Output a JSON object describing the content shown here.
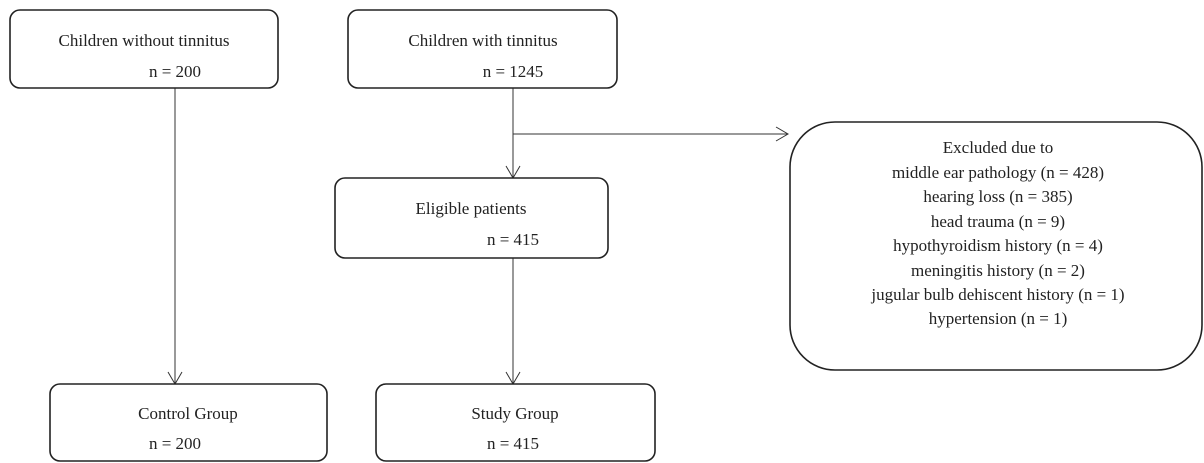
{
  "nodes": [
    {
      "lines": [
        "Children without tinnitus",
        "n = 200"
      ]
    },
    {
      "lines": [
        "Children with tinnitus",
        "n = 1245"
      ]
    },
    {
      "lines": [
        "Excluded due to",
        "middle ear pathology (n = 428)",
        "hearing loss (n = 385)",
        "head trauma (n = 9)",
        "hypothyroidism history (n = 4)",
        "meningitis history (n = 2)",
        "jugular bulb dehiscent history (n = 1)",
        "hypertension (n = 1)"
      ]
    },
    {
      "lines": [
        "Eligible patients",
        "n = 415"
      ]
    },
    {
      "lines": [
        "Control Group",
        "n = 200"
      ]
    },
    {
      "lines": [
        "Study Group",
        "n = 415"
      ]
    }
  ]
}
